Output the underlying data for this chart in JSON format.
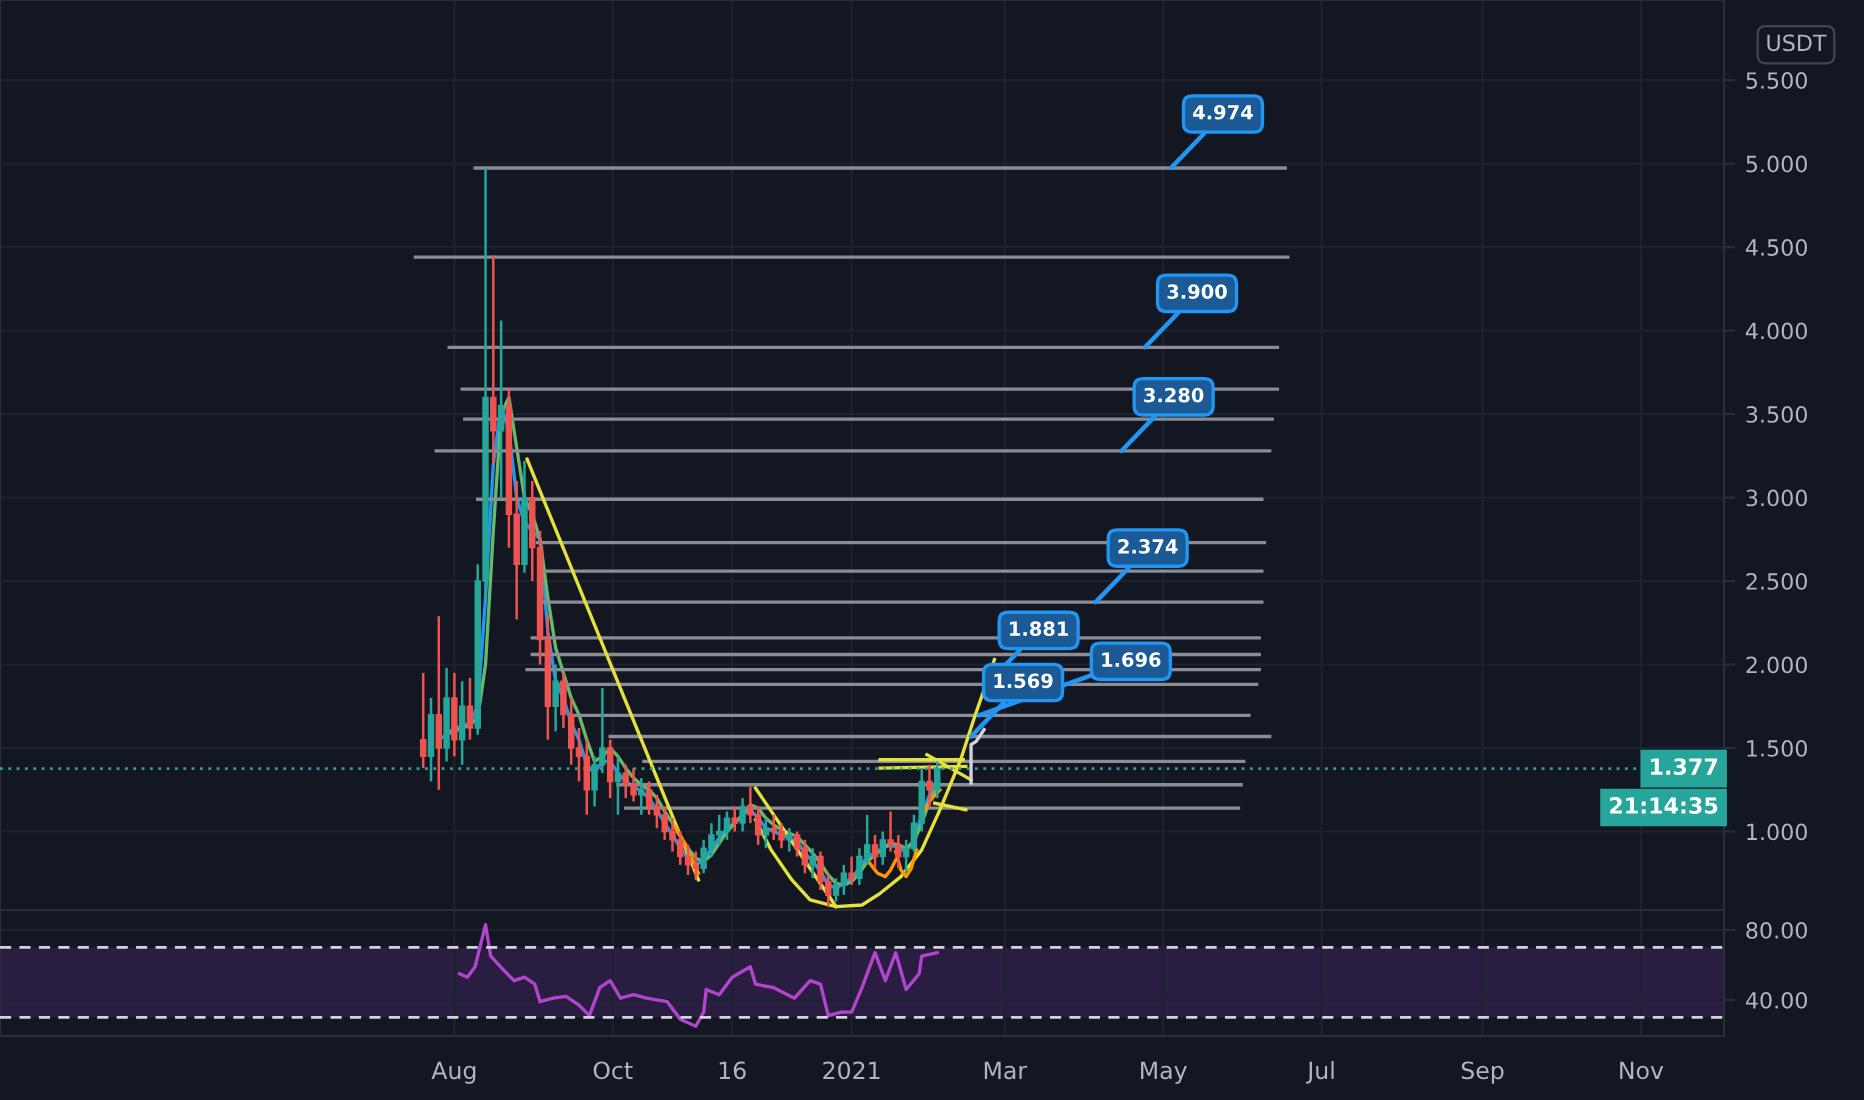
{
  "chart_data": [
    {
      "type": "candlestick",
      "ylabel": "USDT",
      "x": [
        "2020-07-20",
        "2020-07-23",
        "2020-07-26",
        "2020-07-29",
        "2020-08-01",
        "2020-08-04",
        "2020-08-07",
        "2020-08-10",
        "2020-08-13",
        "2020-08-16",
        "2020-08-19",
        "2020-08-22",
        "2020-08-25",
        "2020-08-28",
        "2020-08-31",
        "2020-09-03",
        "2020-09-06",
        "2020-09-09",
        "2020-09-12",
        "2020-09-15",
        "2020-09-18",
        "2020-09-21",
        "2020-09-24",
        "2020-09-27",
        "2020-09-30",
        "2020-10-03",
        "2020-10-06",
        "2020-10-09",
        "2020-10-12",
        "2020-10-15",
        "2020-10-18",
        "2020-10-21",
        "2020-10-24",
        "2020-10-27",
        "2020-10-30",
        "2020-11-02",
        "2020-11-05",
        "2020-11-08",
        "2020-11-11",
        "2020-11-14",
        "2020-11-17",
        "2020-11-20",
        "2020-11-23",
        "2020-11-26",
        "2020-11-29",
        "2020-12-02",
        "2020-12-05",
        "2020-12-08",
        "2020-12-11",
        "2020-12-14",
        "2020-12-17",
        "2020-12-20",
        "2020-12-23",
        "2020-12-26",
        "2020-12-29",
        "2021-01-01",
        "2021-01-04",
        "2021-01-07",
        "2021-01-10",
        "2021-01-13",
        "2021-01-16",
        "2021-01-19",
        "2021-01-22",
        "2021-01-25",
        "2021-01-28",
        "2021-01-31",
        "2021-02-03"
      ],
      "ohlc": [
        [
          1.55,
          1.95,
          1.38,
          1.45
        ],
        [
          1.45,
          1.8,
          1.3,
          1.7
        ],
        [
          1.7,
          2.29,
          1.25,
          1.5
        ],
        [
          1.5,
          1.98,
          1.42,
          1.8
        ],
        [
          1.8,
          1.95,
          1.45,
          1.55
        ],
        [
          1.55,
          1.9,
          1.4,
          1.75
        ],
        [
          1.75,
          1.92,
          1.55,
          1.62
        ],
        [
          1.62,
          2.6,
          1.58,
          2.5
        ],
        [
          2.5,
          4.974,
          2.4,
          3.6
        ],
        [
          3.6,
          4.45,
          3.2,
          3.4
        ],
        [
          3.4,
          4.06,
          3.0,
          3.55
        ],
        [
          3.55,
          3.65,
          2.7,
          2.9
        ],
        [
          2.9,
          3.1,
          2.27,
          2.6
        ],
        [
          2.6,
          3.22,
          2.55,
          3.0
        ],
        [
          3.0,
          3.1,
          2.5,
          2.7
        ],
        [
          2.7,
          2.8,
          2.0,
          2.15
        ],
        [
          2.15,
          2.3,
          1.55,
          1.75
        ],
        [
          1.75,
          2.0,
          1.6,
          1.9
        ],
        [
          1.9,
          1.95,
          1.62,
          1.7
        ],
        [
          1.7,
          1.8,
          1.4,
          1.5
        ],
        [
          1.5,
          1.62,
          1.3,
          1.45
        ],
        [
          1.45,
          1.55,
          1.1,
          1.25
        ],
        [
          1.25,
          1.45,
          1.15,
          1.4
        ],
        [
          1.4,
          1.86,
          1.35,
          1.5
        ],
        [
          1.5,
          1.55,
          1.2,
          1.3
        ],
        [
          1.3,
          1.45,
          1.1,
          1.35
        ],
        [
          1.35,
          1.4,
          1.2,
          1.28
        ],
        [
          1.28,
          1.38,
          1.18,
          1.22
        ],
        [
          1.22,
          1.32,
          1.1,
          1.25
        ],
        [
          1.25,
          1.3,
          1.1,
          1.15
        ],
        [
          1.15,
          1.22,
          1.02,
          1.1
        ],
        [
          1.1,
          1.15,
          0.95,
          1.0
        ],
        [
          1.0,
          1.08,
          0.88,
          0.95
        ],
        [
          0.95,
          1.0,
          0.8,
          0.85
        ],
        [
          0.85,
          0.92,
          0.74,
          0.8
        ],
        [
          0.8,
          0.88,
          0.71,
          0.78
        ],
        [
          0.78,
          0.95,
          0.75,
          0.9
        ],
        [
          0.9,
          1.05,
          0.85,
          0.98
        ],
        [
          0.98,
          1.1,
          0.92,
          1.0
        ],
        [
          1.0,
          1.12,
          0.95,
          1.08
        ],
        [
          1.08,
          1.15,
          1.0,
          1.05
        ],
        [
          1.05,
          1.2,
          1.0,
          1.15
        ],
        [
          1.15,
          1.27,
          1.05,
          1.1
        ],
        [
          1.1,
          1.15,
          0.92,
          0.98
        ],
        [
          0.98,
          1.08,
          0.9,
          1.02
        ],
        [
          1.02,
          1.1,
          0.95,
          1.0
        ],
        [
          1.0,
          1.05,
          0.9,
          0.95
        ],
        [
          0.95,
          1.02,
          0.88,
          0.98
        ],
        [
          0.98,
          1.0,
          0.85,
          0.9
        ],
        [
          0.9,
          0.95,
          0.75,
          0.8
        ],
        [
          0.8,
          0.9,
          0.72,
          0.85
        ],
        [
          0.85,
          0.88,
          0.65,
          0.7
        ],
        [
          0.7,
          0.75,
          0.55,
          0.62
        ],
        [
          0.62,
          0.72,
          0.58,
          0.68
        ],
        [
          0.68,
          0.8,
          0.62,
          0.75
        ],
        [
          0.75,
          0.85,
          0.68,
          0.72
        ],
        [
          0.72,
          0.9,
          0.68,
          0.85
        ],
        [
          0.85,
          1.1,
          0.8,
          0.92
        ],
        [
          0.92,
          0.98,
          0.78,
          0.85
        ],
        [
          0.85,
          1.0,
          0.8,
          0.95
        ],
        [
          0.95,
          1.12,
          0.88,
          0.92
        ],
        [
          0.92,
          0.98,
          0.78,
          0.85
        ],
        [
          0.85,
          0.95,
          0.75,
          0.9
        ],
        [
          0.9,
          1.1,
          0.88,
          1.05
        ],
        [
          1.05,
          1.38,
          1.0,
          1.3
        ],
        [
          1.3,
          1.4,
          1.15,
          1.25
        ],
        [
          1.25,
          1.42,
          1.2,
          1.377
        ]
      ],
      "colors": [
        "#ef5350",
        "#26a69a",
        "#ef5350",
        "#26a69a",
        "#ef5350",
        "#26a69a",
        "#ef5350",
        "#26a69a",
        "#26a69a",
        "#ef5350",
        "#26a69a",
        "#ef5350",
        "#ef5350",
        "#26a69a",
        "#ef5350",
        "#ef5350",
        "#ef5350",
        "#26a69a",
        "#ef5350",
        "#ef5350",
        "#ef5350",
        "#ef5350",
        "#26a69a",
        "#26a69a",
        "#ef5350",
        "#26a69a",
        "#ef5350",
        "#ef5350",
        "#26a69a",
        "#ef5350",
        "#ef5350",
        "#ef5350",
        "#ef5350",
        "#ef5350",
        "#ef5350",
        "#ef5350",
        "#26a69a",
        "#26a69a",
        "#26a69a",
        "#26a69a",
        "#ef5350",
        "#26a69a",
        "#ef5350",
        "#ef5350",
        "#26a69a",
        "#ef5350",
        "#ef5350",
        "#26a69a",
        "#ef5350",
        "#ef5350",
        "#26a69a",
        "#ef5350",
        "#ef5350",
        "#26a69a",
        "#26a69a",
        "#ef5350",
        "#26a69a",
        "#26a69a",
        "#ef5350",
        "#26a69a",
        "#ef5350",
        "#ef5350",
        "#26a69a",
        "#26a69a",
        "#26a69a",
        "#ef5350",
        "#26a69a"
      ],
      "series": [
        {
          "type": "line",
          "color": "#2196f3",
          "values": [
            null,
            null,
            1.55,
            1.58,
            1.62,
            1.63,
            1.65,
            1.75,
            2.4,
            3.2,
            3.55,
            3.4,
            3.0,
            2.85,
            2.8,
            2.75,
            2.2,
            1.9,
            1.8,
            1.65,
            1.55,
            1.4,
            1.35,
            1.42,
            1.42,
            1.35,
            1.3,
            1.27,
            1.24,
            1.2,
            1.13,
            1.05,
            0.98,
            0.9,
            0.84,
            0.8,
            0.83,
            0.9,
            0.96,
            1.02,
            1.05,
            1.1,
            1.13,
            1.08,
            1.02,
            1.0,
            0.98,
            0.96,
            0.94,
            0.87,
            0.82,
            0.76,
            0.68,
            0.66,
            0.69,
            0.72,
            0.78,
            0.85,
            0.87,
            0.9,
            0.92,
            0.9,
            0.88,
            0.95,
            1.1,
            1.22,
            1.3
          ]
        },
        {
          "type": "line",
          "color": "#66bb6a",
          "values": [
            null,
            null,
            null,
            1.58,
            1.6,
            1.62,
            1.64,
            1.68,
            2.0,
            2.8,
            3.5,
            3.6,
            3.3,
            3.0,
            2.9,
            2.75,
            2.4,
            2.1,
            1.95,
            1.8,
            1.7,
            1.55,
            1.42,
            1.45,
            1.5,
            1.45,
            1.38,
            1.32,
            1.28,
            1.25,
            1.2,
            1.12,
            1.05,
            0.97,
            0.9,
            0.84,
            0.82,
            0.86,
            0.93,
            1.0,
            1.05,
            1.1,
            1.16,
            1.14,
            1.08,
            1.04,
            1.01,
            0.99,
            0.97,
            0.92,
            0.87,
            0.81,
            0.74,
            0.69,
            0.68,
            0.7,
            0.75,
            0.82,
            0.86,
            0.9,
            0.93,
            0.92,
            0.9,
            0.94,
            1.05,
            1.18,
            1.28
          ]
        },
        {
          "type": "line",
          "color": "#8a8d96",
          "x": [
            "2020-08-09",
            "2021-06-17"
          ],
          "values": [
            4.974,
            4.974
          ]
        },
        {
          "type": "line",
          "color": "#8a8d96",
          "x": [
            "2020-07-17",
            "2021-06-18"
          ],
          "values": [
            4.44,
            4.44
          ]
        },
        {
          "type": "line",
          "color": "#8a8d96",
          "x": [
            "2020-07-30",
            "2021-06-14"
          ],
          "values": [
            3.9,
            3.9
          ]
        },
        {
          "type": "line",
          "color": "#8a8d96",
          "x": [
            "2020-08-04",
            "2021-06-14"
          ],
          "values": [
            3.65,
            3.65
          ]
        },
        {
          "type": "line",
          "color": "#8a8d96",
          "x": [
            "2020-08-05",
            "2021-06-12"
          ],
          "values": [
            3.47,
            3.47
          ]
        },
        {
          "type": "line",
          "color": "#8a8d96",
          "x": [
            "2020-07-25",
            "2021-06-11"
          ],
          "values": [
            3.28,
            3.28
          ]
        },
        {
          "type": "line",
          "color": "#8a8d96",
          "x": [
            "2020-08-10",
            "2021-06-08"
          ],
          "values": [
            2.99,
            2.99
          ]
        },
        {
          "type": "line",
          "color": "#8a8d96",
          "x": [
            "2020-09-02",
            "2021-06-09"
          ],
          "values": [
            2.73,
            2.73
          ]
        },
        {
          "type": "line",
          "color": "#8a8d96",
          "x": [
            "2020-09-05",
            "2021-06-08"
          ],
          "values": [
            2.56,
            2.56
          ]
        },
        {
          "type": "line",
          "color": "#8a8d96",
          "x": [
            "2020-09-03",
            "2021-06-08"
          ],
          "values": [
            2.374,
            2.374
          ]
        },
        {
          "type": "line",
          "color": "#8a8d96",
          "x": [
            "2020-08-31",
            "2021-06-07"
          ],
          "values": [
            2.16,
            2.16
          ]
        },
        {
          "type": "line",
          "color": "#8a8d96",
          "x": [
            "2020-08-31",
            "2021-06-07"
          ],
          "values": [
            2.06,
            2.06
          ]
        },
        {
          "type": "line",
          "color": "#8a8d96",
          "x": [
            "2020-08-29",
            "2021-06-07"
          ],
          "values": [
            1.97,
            1.97
          ]
        },
        {
          "type": "line",
          "color": "#8a8d96",
          "x": [
            "2020-09-11",
            "2021-06-06"
          ],
          "values": [
            1.881,
            1.881
          ]
        },
        {
          "type": "line",
          "color": "#8a8d96",
          "x": [
            "2020-09-16",
            "2021-06-03"
          ],
          "values": [
            1.696,
            1.696
          ]
        },
        {
          "type": "line",
          "color": "#8a8d96",
          "x": [
            "2020-09-30",
            "2021-06-11"
          ],
          "values": [
            1.569,
            1.569
          ]
        },
        {
          "type": "line",
          "color": "#8a8d96",
          "x": [
            "2020-10-13",
            "2021-06-01"
          ],
          "values": [
            1.42,
            1.42
          ]
        },
        {
          "type": "line",
          "color": "#8a8d96",
          "x": [
            "2020-10-03",
            "2021-05-31"
          ],
          "values": [
            1.28,
            1.28
          ]
        },
        {
          "type": "line",
          "color": "#8a8d96",
          "x": [
            "2020-10-06",
            "2021-05-30"
          ],
          "values": [
            1.14,
            1.14
          ]
        },
        {
          "type": "line",
          "color": "#e6e23a",
          "x": [
            "2020-08-29",
            "2020-11-03"
          ],
          "values": [
            3.23,
            0.71
          ]
        },
        {
          "type": "line",
          "color": "#e6e23a",
          "x": [
            "2020-11-25",
            "2020-12-26"
          ],
          "values": [
            1.26,
            0.55
          ]
        },
        {
          "type": "line",
          "color": "#e6e23a",
          "x": [
            "2020-11-25",
            "2020-12-01",
            "2020-12-09",
            "2020-12-16",
            "2020-12-26",
            "2021-01-05",
            "2021-01-12",
            "2021-01-20",
            "2021-01-28",
            "2021-02-04",
            "2021-02-12",
            "2021-02-17",
            "2021-02-25"
          ],
          "values": [
            1.07,
            0.89,
            0.71,
            0.59,
            0.55,
            0.56,
            0.63,
            0.73,
            0.89,
            1.13,
            1.43,
            1.67,
            2.03
          ]
        },
        {
          "type": "line",
          "color": "#e6e23a",
          "x": [
            "2021-01-12",
            "2021-02-13"
          ],
          "values": [
            1.43,
            1.43
          ]
        },
        {
          "type": "line",
          "color": "#e6e23a",
          "x": [
            "2021-01-12",
            "2021-02-14"
          ],
          "values": [
            1.38,
            1.39
          ]
        },
        {
          "type": "line",
          "color": "#e6e23a",
          "x": [
            "2021-01-30",
            "2021-02-16"
          ],
          "values": [
            1.46,
            1.31
          ]
        },
        {
          "type": "line",
          "color": "#e6e23a",
          "x": [
            "2021-02-02",
            "2021-02-14"
          ],
          "values": [
            1.17,
            1.13
          ]
        },
        {
          "type": "line",
          "color": "#ff9800",
          "x": [
            "2020-10-25",
            "2020-10-29",
            "2020-11-03"
          ],
          "values": [
            1.03,
            0.92,
            0.75
          ]
        },
        {
          "type": "line",
          "color": "#ff9800",
          "x": [
            "2021-01-08",
            "2021-01-11",
            "2021-01-14",
            "2021-01-16",
            "2021-01-18"
          ],
          "values": [
            0.81,
            0.75,
            0.73,
            0.77,
            0.83
          ]
        },
        {
          "type": "line",
          "color": "#ff9800",
          "x": [
            "2021-01-18",
            "2021-01-20",
            "2021-01-22",
            "2021-01-24",
            "2021-01-26"
          ],
          "values": [
            0.88,
            0.77,
            0.73,
            0.78,
            0.89
          ]
        },
        {
          "type": "line",
          "color": "#ff9800",
          "x": [
            "2021-01-28",
            "2021-01-31",
            "2021-02-04"
          ],
          "values": [
            1.09,
            1.18,
            1.25
          ]
        },
        {
          "type": "line",
          "color": "#d1d4dc",
          "x": [
            "2021-02-16",
            "2021-02-16",
            "2021-02-18",
            "2021-02-21"
          ],
          "values": [
            1.29,
            1.52,
            1.54,
            1.61
          ]
        }
      ],
      "ylim": [
        0.53,
        5.98
      ],
      "yticks": [
        {
          "value": 1,
          "label": "1.000"
        },
        {
          "value": 1.5,
          "label": "1.500"
        },
        {
          "value": 2,
          "label": "2.000"
        },
        {
          "value": 2.5,
          "label": "2.500"
        },
        {
          "value": 3,
          "label": "3.000"
        },
        {
          "value": 3.5,
          "label": "3.500"
        },
        {
          "value": 4,
          "label": "4.000"
        },
        {
          "value": 4.5,
          "label": "4.500"
        },
        {
          "value": 5,
          "label": "5.000"
        },
        {
          "value": 5.5,
          "label": "5.500"
        }
      ],
      "xlim": [
        "2020-02-08",
        "2021-12-03"
      ],
      "xticks": [
        {
          "value": "2020-08-01",
          "label": null
        },
        {
          "value": "2020-10-01",
          "label": null
        },
        {
          "value": "2020-11-16",
          "label": null
        },
        {
          "value": "2021-01-01",
          "label": null
        },
        {
          "value": "2021-03-01",
          "label": null
        },
        {
          "value": "2021-05-01",
          "label": null
        },
        {
          "value": "2021-07-01",
          "label": null
        },
        {
          "value": "2021-09-01",
          "label": null
        },
        {
          "value": "2021-11-01",
          "label": null
        }
      ],
      "tick_labels": "y",
      "grid": true,
      "ref_lines": [
        {
          "axis": "y",
          "value": 1.377,
          "label": "1.377",
          "color": "#26a69a",
          "line_style": "dotted"
        }
      ],
      "annotations": [
        {
          "text": "4.974",
          "x": "2021-05-04",
          "y": 4.974
        },
        {
          "text": "3.900",
          "x": "2021-04-24",
          "y": 3.9
        },
        {
          "text": "3.280",
          "x": "2021-04-15",
          "y": 3.28
        },
        {
          "text": "2.374",
          "x": "2021-04-05",
          "y": 2.374
        },
        {
          "text": "1.881",
          "x": "2021-02-22",
          "y": 1.881
        },
        {
          "text": "1.696",
          "x": "2021-02-19",
          "y": 1.696
        },
        {
          "text": "1.569",
          "x": "2021-02-16",
          "y": 1.569
        },
        "21:14:35"
      ]
    },
    {
      "type": "line",
      "series": [
        {
          "color": "#b245cc",
          "x": [
            "2020-08-03",
            "2020-08-06",
            "2020-08-09",
            "2020-08-13",
            "2020-08-15",
            "2020-08-20",
            "2020-08-24",
            "2020-08-28",
            "2020-09-01",
            "2020-09-03",
            "2020-09-08",
            "2020-09-13",
            "2020-09-18",
            "2020-09-22",
            "2020-09-26",
            "2020-09-30",
            "2020-10-04",
            "2020-10-09",
            "2020-10-14",
            "2020-10-22",
            "2020-10-27",
            "2020-11-02",
            "2020-11-05",
            "2020-11-06",
            "2020-11-11",
            "2020-11-16",
            "2020-11-23",
            "2020-11-25",
            "2020-12-02",
            "2020-12-10",
            "2020-12-16",
            "2020-12-20",
            "2020-12-23",
            "2020-12-28",
            "2021-01-01",
            "2021-01-05",
            "2021-01-10",
            "2021-01-14",
            "2021-01-18",
            "2021-01-22",
            "2021-01-27",
            "2021-01-28",
            "2021-01-31",
            "2021-02-03"
          ],
          "values": [
            55,
            53,
            59,
            83,
            65,
            57,
            51,
            53,
            49,
            39,
            41,
            42,
            37,
            31,
            47,
            51,
            41,
            43,
            41,
            39,
            29,
            25,
            33,
            46,
            43,
            53,
            59,
            49,
            47,
            41,
            51,
            49,
            31,
            33,
            33,
            47,
            67,
            51,
            67,
            46,
            55,
            65,
            66,
            67
          ]
        }
      ],
      "ylim": [
        19.4,
        91.4
      ],
      "yticks": [
        {
          "value": 40,
          "label": "40.00"
        },
        {
          "value": 80,
          "label": "80.00"
        }
      ],
      "xlim": [
        "2020-02-08",
        "2021-12-03"
      ],
      "xticks": [
        {
          "value": "2020-08-01",
          "label": "Aug"
        },
        {
          "value": "2020-10-01",
          "label": "Oct"
        },
        {
          "value": "2020-11-16",
          "label": "16"
        },
        {
          "value": "2021-01-01",
          "label": "2021"
        },
        {
          "value": "2021-03-01",
          "label": "Mar"
        },
        {
          "value": "2021-05-01",
          "label": "May"
        },
        {
          "value": "2021-07-01",
          "label": "Jul"
        },
        {
          "value": "2021-09-01",
          "label": "Sep"
        },
        {
          "value": "2021-11-01",
          "label": "Nov"
        }
      ],
      "grid": true,
      "ref_lines": [
        {
          "axis": "y",
          "value": 70,
          "color": "#d1d4dc",
          "line_style": "dashed"
        },
        {
          "axis": "y",
          "value": 30,
          "color": "#d1d4dc",
          "line_style": "dashed"
        }
      ],
      "bands": [
        {
          "axis": "y",
          "from": 30,
          "to": 70,
          "color": "#2a1d42"
        }
      ]
    }
  ]
}
